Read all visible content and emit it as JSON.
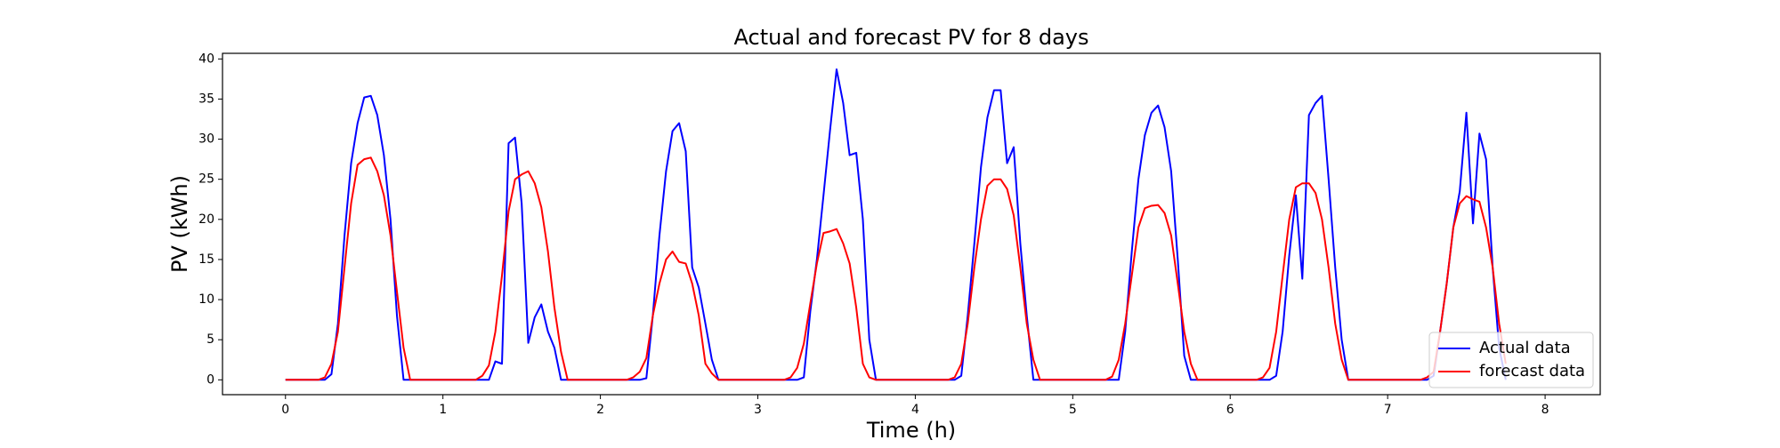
{
  "chart_data": {
    "type": "line",
    "title": "Actual and forecast PV for 8 days",
    "x_label": "Time (h)",
    "y_label": "PV (kWh)",
    "x": [
      0,
      0.042,
      0.083,
      0.125,
      0.167,
      0.208,
      0.25,
      0.292,
      0.333,
      0.375,
      0.417,
      0.458,
      0.5,
      0.542,
      0.583,
      0.625,
      0.667,
      0.708,
      0.75,
      0.792,
      0.833,
      0.875,
      0.917,
      0.958,
      1,
      1.042,
      1.083,
      1.125,
      1.167,
      1.208,
      1.25,
      1.292,
      1.333,
      1.375,
      1.417,
      1.458,
      1.5,
      1.542,
      1.583,
      1.625,
      1.667,
      1.708,
      1.75,
      1.792,
      1.833,
      1.875,
      1.917,
      1.958,
      2,
      2.042,
      2.083,
      2.125,
      2.167,
      2.208,
      2.25,
      2.292,
      2.333,
      2.375,
      2.417,
      2.458,
      2.5,
      2.542,
      2.583,
      2.625,
      2.667,
      2.708,
      2.75,
      2.792,
      2.833,
      2.875,
      2.917,
      2.958,
      3,
      3.042,
      3.083,
      3.125,
      3.167,
      3.208,
      3.25,
      3.292,
      3.333,
      3.375,
      3.417,
      3.458,
      3.5,
      3.542,
      3.583,
      3.625,
      3.667,
      3.708,
      3.75,
      3.792,
      3.833,
      3.875,
      3.917,
      3.958,
      4,
      4.042,
      4.083,
      4.125,
      4.167,
      4.208,
      4.25,
      4.292,
      4.333,
      4.375,
      4.417,
      4.458,
      4.5,
      4.542,
      4.583,
      4.625,
      4.667,
      4.708,
      4.75,
      4.792,
      4.833,
      4.875,
      4.917,
      4.958,
      5,
      5.042,
      5.083,
      5.125,
      5.167,
      5.208,
      5.25,
      5.292,
      5.333,
      5.375,
      5.417,
      5.458,
      5.5,
      5.542,
      5.583,
      5.625,
      5.667,
      5.708,
      5.75,
      5.792,
      5.833,
      5.875,
      5.917,
      5.958,
      6,
      6.042,
      6.083,
      6.125,
      6.167,
      6.208,
      6.25,
      6.292,
      6.333,
      6.375,
      6.417,
      6.458,
      6.5,
      6.542,
      6.583,
      6.625,
      6.667,
      6.708,
      6.75,
      6.792,
      6.833,
      6.875,
      6.917,
      6.958,
      7,
      7.042,
      7.083,
      7.125,
      7.167,
      7.208,
      7.25,
      7.292,
      7.333,
      7.375,
      7.417,
      7.458,
      7.5,
      7.542,
      7.583,
      7.625,
      7.667,
      7.708,
      7.75
    ],
    "series": [
      {
        "name": "Actual data",
        "color": "#0000ff",
        "values": [
          0,
          0,
          0,
          0,
          0,
          0,
          0,
          0.7,
          7,
          18,
          27,
          32,
          35.2,
          35.4,
          33,
          28,
          20,
          8,
          0,
          0,
          0,
          0,
          0,
          0,
          0,
          0,
          0,
          0,
          0,
          0,
          0,
          0,
          2.3,
          2,
          29.5,
          30.2,
          22,
          4.6,
          7.8,
          9.4,
          6,
          4,
          0,
          0,
          0,
          0,
          0,
          0,
          0,
          0,
          0,
          0,
          0,
          0,
          0,
          0.2,
          8,
          18,
          26,
          31,
          32,
          28.5,
          14,
          11.5,
          7,
          2.5,
          0,
          0,
          0,
          0,
          0,
          0,
          0,
          0,
          0,
          0,
          0,
          0,
          0,
          0.3,
          8.5,
          15,
          23,
          31,
          38.7,
          34.5,
          28,
          28.3,
          20,
          5,
          0,
          0,
          0,
          0,
          0,
          0,
          0,
          0,
          0,
          0,
          0,
          0,
          0,
          0.5,
          8,
          17,
          26.5,
          32.7,
          36.1,
          36.1,
          27,
          29,
          17,
          8,
          0,
          0,
          0,
          0,
          0,
          0,
          0,
          0,
          0,
          0,
          0,
          0,
          0,
          0,
          6,
          16,
          25,
          30.5,
          33.3,
          34.2,
          31.5,
          26,
          15,
          3,
          0,
          0,
          0,
          0,
          0,
          0,
          0,
          0,
          0,
          0,
          0,
          0,
          0,
          0.5,
          6,
          15.5,
          23,
          12.6,
          33,
          34.5,
          35.4,
          25,
          14,
          5,
          0,
          0,
          0,
          0,
          0,
          0,
          0,
          0,
          0,
          0,
          0,
          0,
          0,
          0.5,
          6,
          12,
          19,
          23.5,
          33.3,
          19.5,
          30.7,
          27.5,
          14,
          4,
          0
        ]
      },
      {
        "name": "forecast data",
        "color": "#ff0000",
        "values": [
          0,
          0,
          0,
          0,
          0,
          0,
          0.3,
          2,
          6,
          14,
          22,
          26.8,
          27.5,
          27.7,
          26,
          23,
          18,
          11,
          4,
          0,
          0,
          0,
          0,
          0,
          0,
          0,
          0,
          0,
          0,
          0,
          0.5,
          1.8,
          6,
          13,
          21,
          25,
          25.6,
          26,
          24.5,
          21.5,
          16,
          9,
          3.5,
          0,
          0,
          0,
          0,
          0,
          0,
          0,
          0,
          0,
          0,
          0.3,
          1,
          2.7,
          8,
          12,
          15,
          16,
          14.7,
          14.5,
          12,
          8,
          2,
          0.8,
          0,
          0,
          0,
          0,
          0,
          0,
          0,
          0,
          0,
          0,
          0,
          0.3,
          1.5,
          4.5,
          9.5,
          14.5,
          18.3,
          18.5,
          18.8,
          17,
          14.5,
          9,
          2,
          0.3,
          0,
          0,
          0,
          0,
          0,
          0,
          0,
          0,
          0,
          0,
          0,
          0,
          0.3,
          2,
          7,
          14,
          20,
          24.2,
          25,
          25,
          23.8,
          20.5,
          14,
          7,
          2.5,
          0,
          0,
          0,
          0,
          0,
          0,
          0,
          0,
          0,
          0,
          0,
          0.4,
          2.5,
          7,
          13,
          19,
          21.4,
          21.7,
          21.8,
          20.8,
          18,
          12,
          6,
          2,
          0,
          0,
          0,
          0,
          0,
          0,
          0,
          0,
          0,
          0,
          0.3,
          1.5,
          6,
          13,
          20,
          24,
          24.5,
          24.5,
          23.3,
          20,
          14,
          7,
          2.5,
          0,
          0,
          0,
          0,
          0,
          0,
          0,
          0,
          0,
          0,
          0,
          0,
          0.3,
          1,
          6,
          12,
          19,
          22,
          22.9,
          22.5,
          22.2,
          19,
          14,
          7,
          2
        ]
      }
    ],
    "xlim": [
      -0.4,
      8.35
    ],
    "ylim": [
      -1.85,
      40.7
    ],
    "xticks": [
      0,
      1,
      2,
      3,
      4,
      5,
      6,
      7,
      8
    ],
    "yticks": [
      0,
      5,
      10,
      15,
      20,
      25,
      30,
      35,
      40
    ],
    "legend": "lower right"
  }
}
